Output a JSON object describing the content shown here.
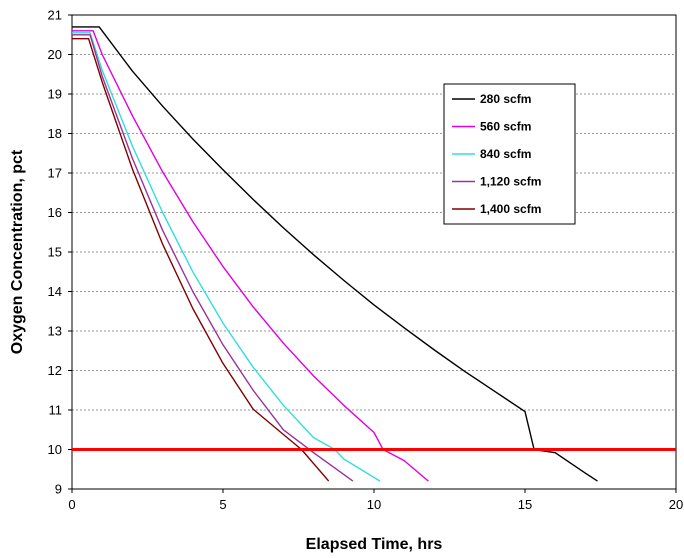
{
  "chart_data": {
    "type": "line",
    "title": "",
    "xlabel": "Elapsed Time, hrs",
    "ylabel": "Oxygen Concentration, pct",
    "xlim": [
      0,
      20
    ],
    "ylim": [
      9,
      21
    ],
    "xticks": [
      "0",
      "5",
      "10",
      "15",
      "20"
    ],
    "yticks": [
      "9",
      "10",
      "11",
      "12",
      "13",
      "14",
      "15",
      "16",
      "17",
      "18",
      "19",
      "20",
      "21"
    ],
    "grid": "horizontal dashed",
    "legend_position": "top-right",
    "series": [
      {
        "name": "280 scfm",
        "color": "#000000",
        "x": [
          0,
          0.9,
          2,
          3,
          4,
          5,
          6,
          7,
          8,
          9,
          10,
          11,
          12,
          13,
          14,
          15,
          15.3,
          16,
          17,
          17.4
        ],
        "y": [
          20.7,
          20.7,
          19.58,
          18.69,
          17.86,
          17.08,
          16.33,
          15.61,
          14.93,
          14.28,
          13.66,
          13.08,
          12.52,
          11.98,
          11.47,
          10.96,
          10.0,
          9.92,
          9.4,
          9.2
        ]
      },
      {
        "name": "560 scfm",
        "color": "#e000e0",
        "x": [
          0,
          0.7,
          1,
          2,
          3,
          4,
          5,
          6,
          7,
          8,
          9,
          10,
          10.3,
          11,
          11.8
        ],
        "y": [
          20.6,
          20.6,
          20.0,
          18.45,
          17.03,
          15.77,
          14.63,
          13.61,
          12.69,
          11.86,
          11.12,
          10.43,
          10.0,
          9.72,
          9.2
        ]
      },
      {
        "name": "840 scfm",
        "color": "#33dddd",
        "x": [
          0,
          0.6,
          1,
          2,
          3,
          4,
          5,
          6,
          7,
          8,
          8.7,
          9,
          10.2
        ],
        "y": [
          20.55,
          20.55,
          19.6,
          17.68,
          16.0,
          14.5,
          13.2,
          12.08,
          11.12,
          10.3,
          10.0,
          9.76,
          9.2
        ]
      },
      {
        "name": "1,120 scfm",
        "color": "#993399",
        "x": [
          0,
          0.6,
          1,
          2,
          3,
          4,
          5,
          6,
          7,
          8,
          9.3
        ],
        "y": [
          20.5,
          20.5,
          19.45,
          17.37,
          15.55,
          14.0,
          12.65,
          11.5,
          10.5,
          9.92,
          9.2
        ]
      },
      {
        "name": "1,400 scfm",
        "color": "#800000",
        "x": [
          0,
          0.55,
          1,
          2,
          3,
          4,
          5,
          6,
          7,
          7.6,
          8.5
        ],
        "y": [
          20.4,
          20.4,
          19.3,
          17.1,
          15.2,
          13.57,
          12.18,
          11.02,
          10.38,
          10.0,
          9.2
        ]
      }
    ],
    "reference_line": {
      "y": 10,
      "color": "#ff0000"
    }
  }
}
